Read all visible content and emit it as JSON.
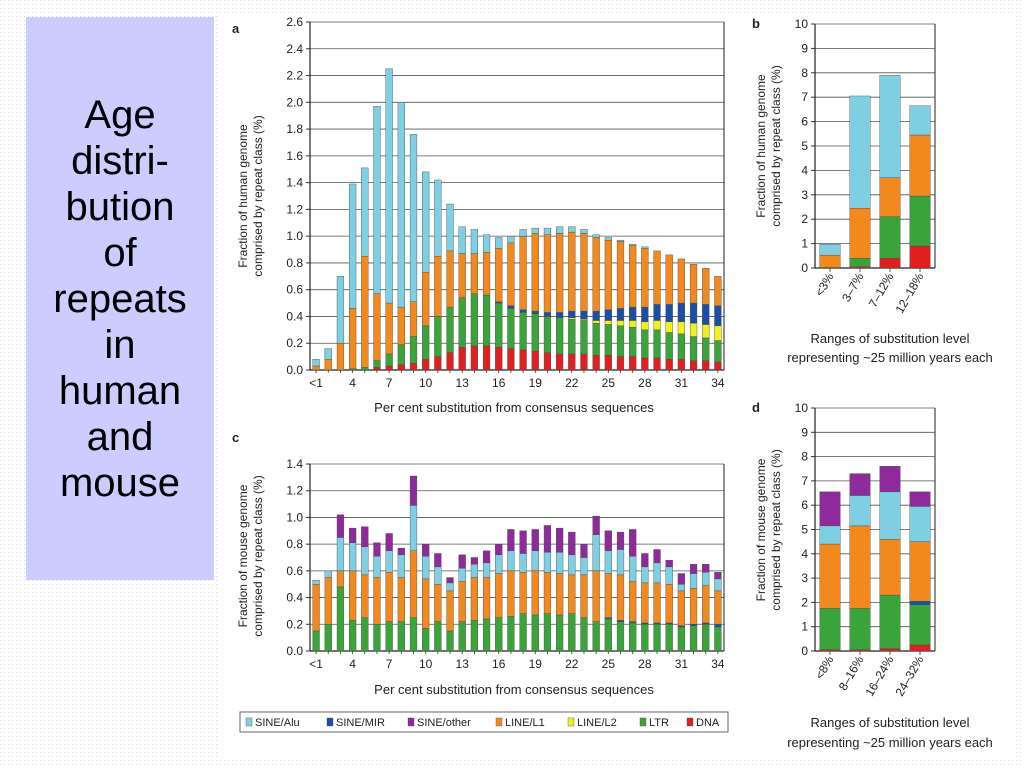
{
  "slide": {
    "title_lines": [
      "Age",
      "distri-",
      "bution",
      "of",
      "repeats",
      "in",
      "human",
      "and",
      "mouse"
    ]
  },
  "colors": {
    "SINE/Alu": "#7fcfe3",
    "SINE/MIR": "#1a4fa3",
    "SINE/other": "#8e2a9c",
    "LINE/L1": "#f2891f",
    "LINE/L2": "#f0f01e",
    "LTR": "#3aa43a",
    "DNA": "#e02020"
  },
  "legend": [
    "SINE/Alu",
    "SINE/MIR",
    "SINE/other",
    "LINE/L1",
    "LINE/L2",
    "LTR",
    "DNA"
  ],
  "chart_data": [
    {
      "panel": "a",
      "type": "bar",
      "stacked": true,
      "xlabel": "Per cent substitution from consensus sequences",
      "ylabel": [
        "Fraction of human genome",
        "comprised by repeat class (%)"
      ],
      "ylim": [
        0,
        2.6
      ],
      "yticks": [
        "0.0",
        "0.2",
        "0.4",
        "0.6",
        "0.8",
        "1.0",
        "1.2",
        "1.4",
        "1.6",
        "1.8",
        "2.0",
        "2.2",
        "2.4",
        "2.6"
      ],
      "xticks": [
        "<1",
        "4",
        "7",
        "10",
        "13",
        "16",
        "19",
        "22",
        "25",
        "28",
        "31",
        "34"
      ],
      "categories": [
        "<1",
        "2",
        "3",
        "4",
        "5",
        "6",
        "7",
        "8",
        "9",
        "10",
        "11",
        "12",
        "13",
        "14",
        "15",
        "16",
        "17",
        "18",
        "19",
        "20",
        "21",
        "22",
        "23",
        "24",
        "25",
        "26",
        "27",
        "28",
        "29",
        "30",
        "31",
        "32",
        "33",
        "34"
      ],
      "series": [
        {
          "name": "DNA",
          "values": [
            0,
            0,
            0,
            0,
            0,
            0.02,
            0.03,
            0.04,
            0.05,
            0.08,
            0.1,
            0.13,
            0.17,
            0.18,
            0.18,
            0.17,
            0.16,
            0.15,
            0.14,
            0.13,
            0.12,
            0.12,
            0.12,
            0.11,
            0.11,
            0.1,
            0.1,
            0.09,
            0.09,
            0.08,
            0.08,
            0.07,
            0.07,
            0.06
          ]
        },
        {
          "name": "LTR",
          "values": [
            0,
            0,
            0,
            0.01,
            0.02,
            0.05,
            0.09,
            0.15,
            0.2,
            0.25,
            0.3,
            0.34,
            0.37,
            0.39,
            0.38,
            0.33,
            0.3,
            0.28,
            0.28,
            0.27,
            0.27,
            0.26,
            0.25,
            0.24,
            0.23,
            0.23,
            0.22,
            0.21,
            0.21,
            0.2,
            0.19,
            0.18,
            0.17,
            0.16
          ]
        },
        {
          "name": "LINE/L2",
          "values": [
            0,
            0,
            0,
            0,
            0,
            0,
            0,
            0,
            0,
            0,
            0,
            0,
            0,
            0,
            0,
            0,
            0,
            0,
            0,
            0,
            0,
            0.01,
            0.01,
            0.02,
            0.03,
            0.04,
            0.05,
            0.06,
            0.07,
            0.08,
            0.09,
            0.1,
            0.1,
            0.11
          ]
        },
        {
          "name": "SINE/MIR",
          "values": [
            0,
            0,
            0,
            0,
            0,
            0,
            0,
            0,
            0,
            0,
            0,
            0,
            0,
            0,
            0,
            0.01,
            0.02,
            0.02,
            0.02,
            0.03,
            0.04,
            0.05,
            0.06,
            0.07,
            0.08,
            0.09,
            0.1,
            0.11,
            0.12,
            0.13,
            0.14,
            0.15,
            0.15,
            0.15
          ]
        },
        {
          "name": "LINE/L1",
          "values": [
            0.03,
            0.08,
            0.2,
            0.45,
            0.83,
            0.5,
            0.38,
            0.28,
            0.26,
            0.4,
            0.45,
            0.42,
            0.33,
            0.3,
            0.32,
            0.4,
            0.47,
            0.55,
            0.58,
            0.58,
            0.59,
            0.59,
            0.58,
            0.55,
            0.52,
            0.5,
            0.46,
            0.44,
            0.4,
            0.37,
            0.33,
            0.29,
            0.27,
            0.22
          ]
        },
        {
          "name": "SINE/Alu",
          "values": [
            0.05,
            0.08,
            0.5,
            0.93,
            0.66,
            1.4,
            1.75,
            1.53,
            1.25,
            0.75,
            0.57,
            0.35,
            0.2,
            0.18,
            0.13,
            0.08,
            0.05,
            0.05,
            0.04,
            0.05,
            0.05,
            0.04,
            0.03,
            0.02,
            0.02,
            0.01,
            0.01,
            0.01,
            0,
            0,
            0,
            0,
            0,
            0
          ]
        }
      ]
    },
    {
      "panel": "b",
      "type": "bar",
      "stacked": true,
      "xlabel": [
        "Ranges of substitution level",
        "representing ~25 million years each"
      ],
      "ylabel": [
        "Fraction of human genome",
        "comprised by repeat class (%)"
      ],
      "ylim": [
        0,
        10
      ],
      "yticks": [
        "0",
        "1",
        "2",
        "3",
        "4",
        "5",
        "6",
        "7",
        "8",
        "9",
        "10"
      ],
      "categories": [
        "<3%",
        "3–7%",
        "7–12%",
        "12–18%"
      ],
      "series": [
        {
          "name": "DNA",
          "values": [
            0,
            0.05,
            0.4,
            0.9
          ]
        },
        {
          "name": "LTR",
          "values": [
            0.02,
            0.35,
            1.7,
            2.05
          ]
        },
        {
          "name": "LINE/L1",
          "values": [
            0.5,
            2.05,
            1.6,
            2.5
          ]
        },
        {
          "name": "SINE/Alu",
          "values": [
            0.45,
            4.6,
            4.2,
            1.2
          ]
        }
      ]
    },
    {
      "panel": "c",
      "type": "bar",
      "stacked": true,
      "xlabel": "Per cent substitution from consensus sequences",
      "ylabel": [
        "Fraction of mouse genome",
        "comprised by repeat class (%)"
      ],
      "ylim": [
        0,
        1.4
      ],
      "yticks": [
        "0.0",
        "0.2",
        "0.4",
        "0.6",
        "0.8",
        "1.0",
        "1.2",
        "1.4"
      ],
      "xticks": [
        "<1",
        "4",
        "7",
        "10",
        "13",
        "16",
        "19",
        "22",
        "25",
        "28",
        "31",
        "34"
      ],
      "categories": [
        "<1",
        "2",
        "3",
        "4",
        "5",
        "6",
        "7",
        "8",
        "9",
        "10",
        "11",
        "12",
        "13",
        "14",
        "15",
        "16",
        "17",
        "18",
        "19",
        "20",
        "21",
        "22",
        "23",
        "24",
        "25",
        "26",
        "27",
        "28",
        "29",
        "30",
        "31",
        "32",
        "33",
        "34"
      ],
      "series": [
        {
          "name": "DNA",
          "values": [
            0,
            0,
            0,
            0,
            0,
            0,
            0,
            0,
            0,
            0,
            0,
            0,
            0,
            0,
            0,
            0,
            0,
            0,
            0,
            0,
            0,
            0,
            0,
            0,
            0,
            0,
            0,
            0,
            0,
            0,
            0,
            0,
            0,
            0
          ]
        },
        {
          "name": "LTR",
          "values": [
            0.15,
            0.2,
            0.48,
            0.23,
            0.25,
            0.2,
            0.22,
            0.22,
            0.25,
            0.17,
            0.22,
            0.15,
            0.22,
            0.23,
            0.24,
            0.25,
            0.26,
            0.28,
            0.27,
            0.28,
            0.27,
            0.28,
            0.25,
            0.22,
            0.24,
            0.22,
            0.21,
            0.2,
            0.2,
            0.2,
            0.18,
            0.19,
            0.2,
            0.18
          ]
        },
        {
          "name": "SINE/MIR",
          "values": [
            0,
            0,
            0,
            0,
            0,
            0,
            0,
            0,
            0,
            0,
            0,
            0,
            0,
            0,
            0,
            0,
            0,
            0,
            0,
            0,
            0,
            0,
            0,
            0,
            0.01,
            0.01,
            0.01,
            0.01,
            0.01,
            0.01,
            0.01,
            0.01,
            0.01,
            0.02
          ]
        },
        {
          "name": "LINE/L1",
          "values": [
            0.35,
            0.35,
            0.12,
            0.37,
            0.32,
            0.35,
            0.37,
            0.33,
            0.5,
            0.37,
            0.28,
            0.3,
            0.3,
            0.32,
            0.31,
            0.33,
            0.34,
            0.31,
            0.33,
            0.31,
            0.31,
            0.29,
            0.32,
            0.38,
            0.33,
            0.34,
            0.3,
            0.3,
            0.3,
            0.29,
            0.26,
            0.27,
            0.28,
            0.25
          ]
        },
        {
          "name": "SINE/Alu",
          "values": [
            0.03,
            0.05,
            0.25,
            0.21,
            0.21,
            0.16,
            0.16,
            0.17,
            0.34,
            0.17,
            0.13,
            0.06,
            0.1,
            0.1,
            0.11,
            0.14,
            0.15,
            0.14,
            0.15,
            0.15,
            0.16,
            0.15,
            0.13,
            0.27,
            0.17,
            0.19,
            0.19,
            0.12,
            0.15,
            0.13,
            0.05,
            0.11,
            0.1,
            0.09
          ]
        },
        {
          "name": "SINE/other",
          "values": [
            0,
            0,
            0.17,
            0.11,
            0.15,
            0.1,
            0.13,
            0.05,
            0.22,
            0.09,
            0.1,
            0.04,
            0.1,
            0.05,
            0.09,
            0.08,
            0.16,
            0.17,
            0.16,
            0.2,
            0.18,
            0.17,
            0.1,
            0.14,
            0.15,
            0.13,
            0.2,
            0.1,
            0.1,
            0.05,
            0.08,
            0.07,
            0.06,
            0.05
          ]
        }
      ]
    },
    {
      "panel": "d",
      "type": "bar",
      "stacked": true,
      "xlabel": [
        "Ranges of substitution level",
        "representing ~25 million years each"
      ],
      "ylabel": [
        "Fraction of mouse genome",
        "comprised by repeat class (%)"
      ],
      "ylim": [
        0,
        10
      ],
      "yticks": [
        "0",
        "1",
        "2",
        "3",
        "4",
        "5",
        "6",
        "7",
        "8",
        "9",
        "10"
      ],
      "categories": [
        "<8%",
        "8–16%",
        "16–24%",
        "24–32%"
      ],
      "series": [
        {
          "name": "DNA",
          "values": [
            0.05,
            0.05,
            0.1,
            0.25
          ]
        },
        {
          "name": "LTR",
          "values": [
            1.7,
            1.7,
            2.2,
            1.65
          ]
        },
        {
          "name": "SINE/MIR",
          "values": [
            0,
            0,
            0,
            0.15
          ]
        },
        {
          "name": "LINE/L1",
          "values": [
            2.65,
            3.4,
            2.3,
            2.45
          ]
        },
        {
          "name": "SINE/Alu",
          "values": [
            0.75,
            1.25,
            1.95,
            1.45
          ]
        },
        {
          "name": "SINE/other",
          "values": [
            1.4,
            0.9,
            1.05,
            0.6
          ]
        }
      ]
    }
  ]
}
